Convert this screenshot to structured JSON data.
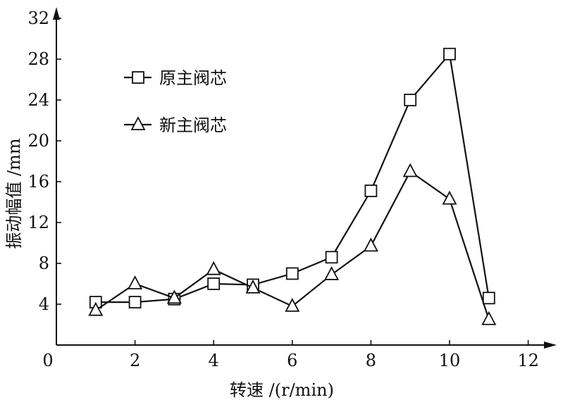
{
  "chart_data": {
    "type": "line",
    "title": "",
    "xlabel": "转速 /(r/min)",
    "ylabel": "振动幅值 /mm",
    "xlim": [
      0,
      12
    ],
    "ylim": [
      0,
      32
    ],
    "x_ticks": [
      0,
      2,
      4,
      6,
      8,
      10,
      12
    ],
    "y_ticks": [
      4,
      8,
      12,
      16,
      20,
      24,
      28,
      32
    ],
    "grid": false,
    "legend_position": "top-left",
    "x": [
      1,
      2,
      3,
      4,
      5,
      6,
      7,
      8,
      9,
      10,
      11
    ],
    "series": [
      {
        "name": "原主阀芯",
        "marker": "square",
        "x": [
          1,
          2,
          3,
          4,
          5,
          6,
          7,
          8,
          9,
          10,
          11
        ],
        "values": [
          4.2,
          4.2,
          4.5,
          6.0,
          5.9,
          7.0,
          8.6,
          15.1,
          24.0,
          28.5,
          4.6
        ]
      },
      {
        "name": "新主阀芯",
        "marker": "triangle",
        "x": [
          1,
          2,
          3,
          4,
          5,
          6,
          7,
          8,
          9,
          10,
          11
        ],
        "values": [
          3.4,
          6.0,
          4.6,
          7.4,
          5.6,
          3.8,
          6.9,
          9.7,
          17.0,
          14.3,
          2.5
        ]
      }
    ]
  }
}
